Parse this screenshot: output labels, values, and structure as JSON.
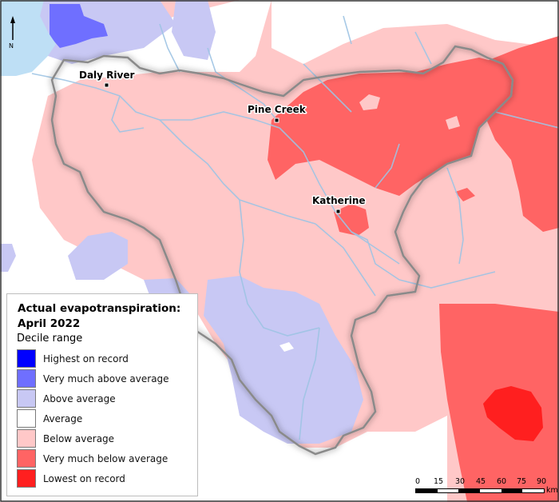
{
  "legend": {
    "title_line1": "Actual evapotranspiration:",
    "title_line2": "April 2022",
    "subtitle": "Decile range",
    "items": [
      {
        "label": "Highest on record",
        "color": "#0000ff"
      },
      {
        "label": "Very much above average",
        "color": "#6f6fff"
      },
      {
        "label": "Above average",
        "color": "#c8c8f4"
      },
      {
        "label": "Average",
        "color": "#ffffff"
      },
      {
        "label": "Below average",
        "color": "#ffc8c8"
      },
      {
        "label": "Very much below average",
        "color": "#ff6464"
      },
      {
        "label": "Lowest on record",
        "color": "#ff1f1f"
      }
    ]
  },
  "towns": {
    "daly_river": "Daly River",
    "pine_creek": "Pine Creek",
    "katherine": "Katherine"
  },
  "north_arrow": "N",
  "scale": {
    "ticks": [
      "0",
      "15",
      "30",
      "45",
      "60",
      "75",
      "90"
    ],
    "unit": "km"
  },
  "colors": {
    "water": "#bedff5",
    "river": "#9ec4e4",
    "boundary": "#8a8a8a"
  }
}
